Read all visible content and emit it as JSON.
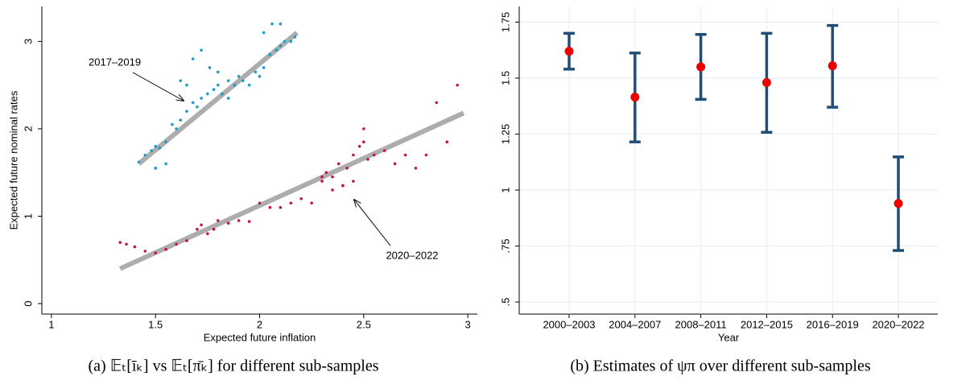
{
  "chart_data": [
    {
      "type": "scatter",
      "x_label": "Expected future inflation",
      "y_label": "Expected future nominal rates",
      "xlim": [
        0.954,
        3.046
      ],
      "ylim": [
        -0.12,
        3.4
      ],
      "xticks": [
        1,
        1.5,
        2,
        2.5,
        3
      ],
      "yticks": [
        0,
        1,
        2,
        3
      ],
      "series": [
        {
          "color": "#1a9cc9",
          "x": [
            1.42,
            1.45,
            1.48,
            1.5,
            1.52,
            1.55,
            1.5,
            1.58,
            1.6,
            1.62,
            1.65,
            1.68,
            1.7,
            1.72,
            1.75,
            1.78,
            1.8,
            1.82,
            1.85,
            1.88,
            1.9,
            1.92,
            1.95,
            1.98,
            2.0,
            2.02,
            2.05,
            2.08,
            2.1,
            2.12,
            2.15,
            2.17,
            1.68,
            1.72,
            1.76,
            1.8,
            1.62,
            1.65,
            2.02,
            2.06,
            2.1,
            1.5,
            1.55,
            1.85
          ],
          "values": [
            1.62,
            1.7,
            1.75,
            1.8,
            1.78,
            1.85,
            1.55,
            2.05,
            2.0,
            2.1,
            2.2,
            2.3,
            2.25,
            2.35,
            2.4,
            2.45,
            2.5,
            2.4,
            2.55,
            2.5,
            2.6,
            2.55,
            2.5,
            2.65,
            2.6,
            2.7,
            2.85,
            2.9,
            2.95,
            3.0,
            3.0,
            3.05,
            2.8,
            2.9,
            2.7,
            2.65,
            2.55,
            2.5,
            3.1,
            3.2,
            3.2,
            1.55,
            1.6,
            2.35
          ]
        },
        {
          "color": "#c8104e",
          "x": [
            1.33,
            1.36,
            1.4,
            1.45,
            1.5,
            1.55,
            1.6,
            1.65,
            1.7,
            1.72,
            1.75,
            1.78,
            1.8,
            1.85,
            1.9,
            1.95,
            2.0,
            2.05,
            2.1,
            2.15,
            2.2,
            2.25,
            2.3,
            2.32,
            2.35,
            2.38,
            2.4,
            2.42,
            2.45,
            2.48,
            2.5,
            2.52,
            2.55,
            2.6,
            2.65,
            2.7,
            2.75,
            2.8,
            2.85,
            2.9,
            2.95,
            2.4,
            2.45,
            2.5,
            2.35,
            2.3
          ],
          "values": [
            0.7,
            0.68,
            0.65,
            0.6,
            0.58,
            0.62,
            0.68,
            0.72,
            0.85,
            0.9,
            0.8,
            0.85,
            0.95,
            0.92,
            0.95,
            0.94,
            1.15,
            1.1,
            1.1,
            1.15,
            1.2,
            1.15,
            1.4,
            1.5,
            1.45,
            1.6,
            1.35,
            1.55,
            1.7,
            1.8,
            1.85,
            1.65,
            1.7,
            1.75,
            1.6,
            1.7,
            1.55,
            1.7,
            2.3,
            1.85,
            2.5,
            1.35,
            1.4,
            2.0,
            1.3,
            1.45
          ]
        }
      ],
      "fit_lines": [
        {
          "color": "#999999",
          "x": [
            1.42,
            2.18
          ],
          "values": [
            1.6,
            3.1
          ]
        },
        {
          "color": "#999999",
          "x": [
            1.33,
            2.98
          ],
          "values": [
            0.4,
            2.18
          ]
        }
      ],
      "annotations": [
        "2017–2019",
        "2020–2022"
      ],
      "caption": "(a) 𝔼ₜ[īₖ] vs 𝔼ₜ[π̄ₖ] for different sub-samples"
    },
    {
      "type": "errorbar",
      "x_label": "Year",
      "categories": [
        "2000–2003",
        "2004–2007",
        "2008–2011",
        "2012–2015",
        "2016–2019",
        "2020–2022"
      ],
      "values": [
        1.62,
        1.415,
        1.55,
        1.48,
        1.555,
        0.94
      ],
      "lower": [
        1.54,
        1.215,
        1.405,
        1.258,
        1.37,
        0.73
      ],
      "upper": [
        1.7,
        1.612,
        1.695,
        1.7,
        1.735,
        1.148
      ],
      "color": "#ee0000",
      "bar_color": "#1f4e79",
      "ylim": [
        0.446,
        1.82
      ],
      "yticks": [
        {
          "value": 0.5,
          "label": ".5"
        },
        {
          "value": 0.75,
          "label": ".75"
        },
        1,
        1.25,
        1.5,
        1.75
      ],
      "grid": true,
      "caption": "(b) Estimates of ψπ over different sub-samples"
    }
  ]
}
